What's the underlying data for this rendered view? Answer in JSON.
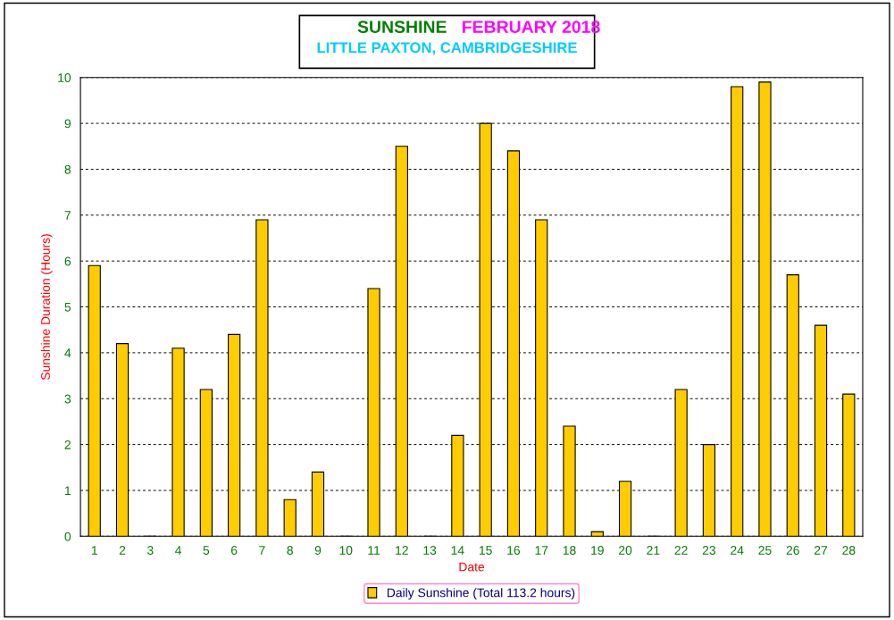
{
  "chart_data": {
    "type": "bar",
    "title": "SUNSHINE   FEBRUARY 2018",
    "subtitle": "LITTLE PAXTON, CAMBRIDGESHIRE",
    "xlabel": "Date",
    "ylabel": "Sunshine Duration (Hours)",
    "categories": [
      "1",
      "2",
      "3",
      "4",
      "5",
      "6",
      "7",
      "8",
      "9",
      "10",
      "11",
      "12",
      "13",
      "14",
      "15",
      "16",
      "17",
      "18",
      "19",
      "20",
      "21",
      "22",
      "23",
      "24",
      "25",
      "26",
      "27",
      "28"
    ],
    "series": [
      {
        "name": "Daily Sunshine (Total 113.2 hours)",
        "color": "#ffcc00",
        "values": [
          5.9,
          4.2,
          0,
          4.1,
          3.2,
          4.4,
          6.9,
          0.8,
          1.4,
          0,
          5.4,
          8.5,
          0,
          2.2,
          9.0,
          8.4,
          6.9,
          2.4,
          0.1,
          1.2,
          0,
          3.2,
          2.0,
          9.8,
          9.9,
          5.7,
          4.6,
          3.1
        ]
      }
    ],
    "ylim": [
      0,
      10
    ],
    "yticks": [
      0,
      1,
      2,
      3,
      4,
      5,
      6,
      7,
      8,
      9,
      10
    ],
    "grid": "y",
    "legend": "bottom"
  }
}
